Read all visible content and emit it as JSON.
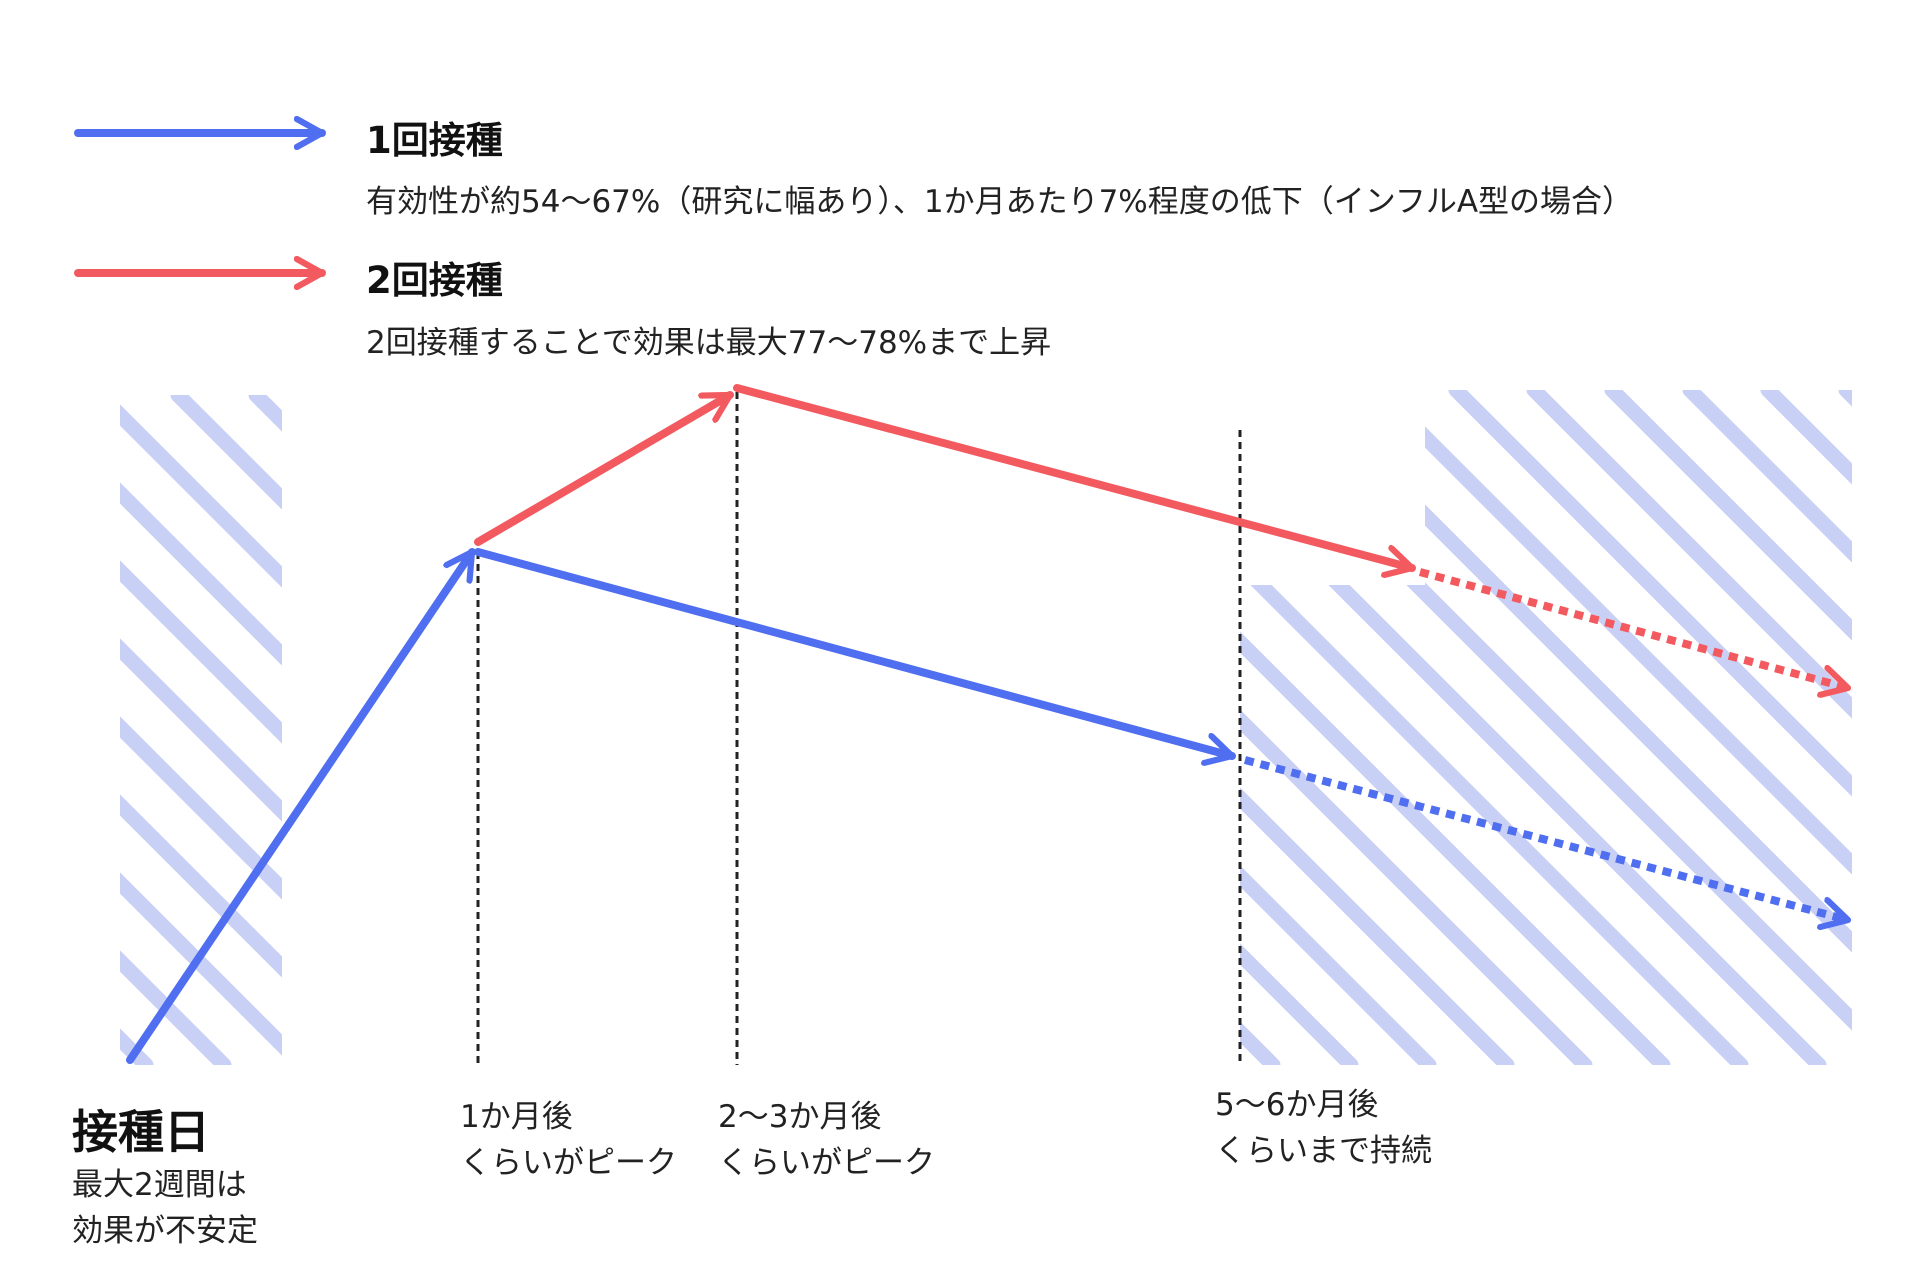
{
  "colors": {
    "blue": "#4f6ef0",
    "red": "#f35a5f",
    "hatch": "#c9d0f5",
    "dashed": "#222222"
  },
  "legend": {
    "dose1": {
      "title": "1回接種",
      "description": "有効性が約54〜67%（研究に幅あり）、1か月あたり7%程度の低下（インフルA型の場合）"
    },
    "dose2": {
      "title": "2回接種",
      "description": "2回接種することで効果は最大77〜78%まで上昇"
    }
  },
  "start": {
    "title": "接種日",
    "note_line1": "最大2週間は",
    "note_line2": "効果が不安定"
  },
  "milestones": [
    {
      "line1": "1か月後",
      "line2": "くらいがピーク"
    },
    {
      "line1": "2〜3か月後",
      "line2": "くらいがピーク"
    },
    {
      "line1": "5〜6か月後",
      "line2": "くらいまで持続"
    }
  ]
}
